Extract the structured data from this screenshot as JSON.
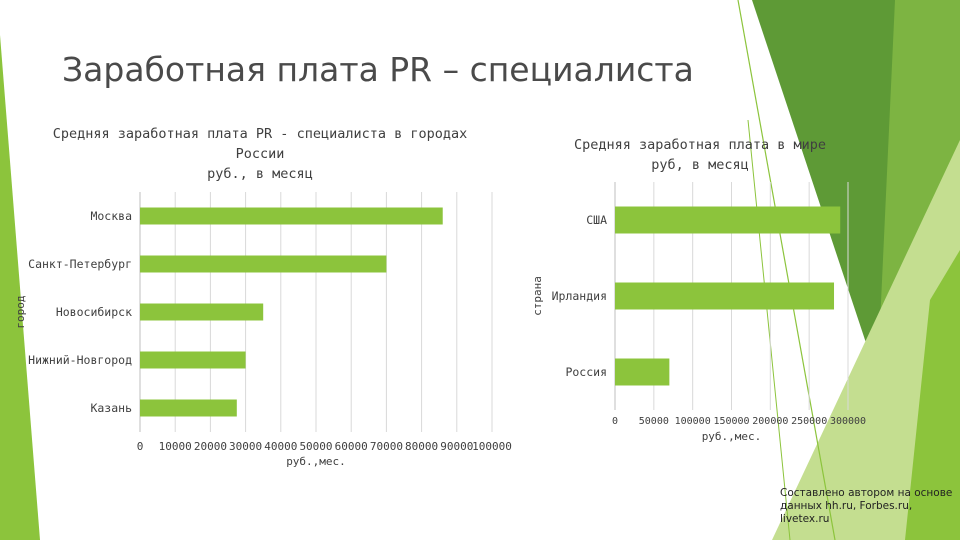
{
  "slide": {
    "title": "Заработная плата PR – специалиста",
    "source_lines": [
      "Составлено автором на основе",
      "данных hh.ru, Forbes.ru,",
      "livetex.ru"
    ]
  },
  "colors": {
    "bar": "#8CC43C",
    "deco_dark": "#5E9A36",
    "deco_mid": "#7DB442",
    "deco_light": "#C4DE90",
    "axis": "#BFBFBF",
    "text": "#404040"
  },
  "chart_data": [
    {
      "type": "bar",
      "orientation": "horizontal",
      "title_lines": [
        "Средняя заработная плата PR - специалиста в городах",
        "России",
        "руб., в месяц"
      ],
      "categories": [
        "Москва",
        "Санкт-Петербург",
        "Новосибирск",
        "Нижний-Новгород",
        "Казань"
      ],
      "values": [
        86000,
        70000,
        35000,
        30000,
        27500
      ],
      "xlabel": "руб.,мес.",
      "ylabel": "город",
      "xlim": [
        0,
        100000
      ],
      "xticks": [
        "0",
        "10000",
        "20000",
        "30000",
        "40000",
        "50000",
        "60000",
        "70000",
        "80000",
        "90000",
        "100000"
      ],
      "grid": true,
      "legend": "none"
    },
    {
      "type": "bar",
      "orientation": "horizontal",
      "title_lines": [
        "Средняя заработная плата в мире",
        "руб, в месяц"
      ],
      "categories": [
        "США",
        "Ирландия",
        "Россия"
      ],
      "values": [
        290000,
        282000,
        70000
      ],
      "xlabel": "руб.,мес.",
      "ylabel": "страна",
      "xlim": [
        0,
        300000
      ],
      "xticks": [
        "0",
        "50000",
        "100000",
        "150000",
        "200000",
        "250000",
        "300000"
      ],
      "grid": true,
      "legend": "none"
    }
  ]
}
